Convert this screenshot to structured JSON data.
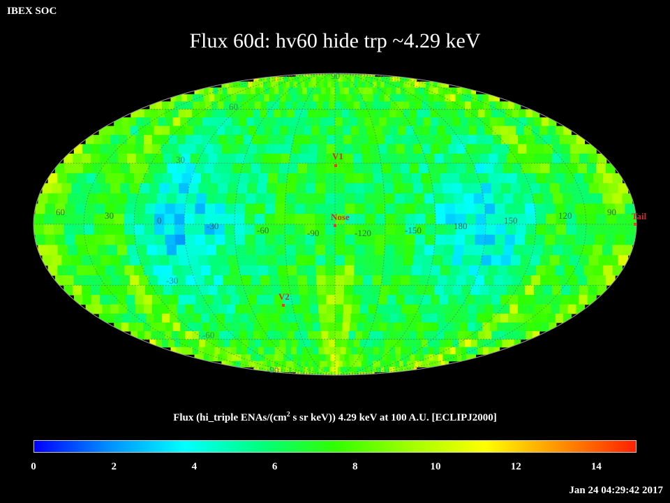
{
  "header": {
    "org": "IBEX SOC",
    "title": "Flux   60d: hv60 hide trp ~4.29 keV"
  },
  "map": {
    "projection": "Mollweide",
    "frame": "ECLIPJ2000",
    "lat_labels": [
      "90",
      "60",
      "30",
      "-30",
      "-60",
      "-90"
    ],
    "lon_labels": [
      "60",
      "30",
      "0",
      "-30",
      "-60",
      "-90",
      "-120",
      "-150",
      "180",
      "150",
      "120",
      "90"
    ],
    "markers": [
      {
        "label": "V1",
        "color": "#ff3030"
      },
      {
        "label": "Nose",
        "color": "#ff3030"
      },
      {
        "label": "V2",
        "color": "#ff3030"
      },
      {
        "label": "Tail",
        "color": "#ff3030"
      }
    ]
  },
  "colorbar": {
    "title_prefix": "Flux (hi_triple ENAs/(cm",
    "title_sup": "2",
    "title_suffix": " s sr keV))  4.29 keV at 100 A.U. [ECLIPJ2000]",
    "ticks": [
      "0",
      "2",
      "4",
      "6",
      "8",
      "10",
      "12",
      "14"
    ],
    "range": [
      0,
      15
    ],
    "colors": [
      "#0000ff",
      "#0090ff",
      "#00ffff",
      "#00ff80",
      "#30ff00",
      "#a0ff00",
      "#ffff00",
      "#ff9000",
      "#ff2000"
    ]
  },
  "footer": {
    "timestamp": "Jan 24 04:29:42 2017"
  }
}
